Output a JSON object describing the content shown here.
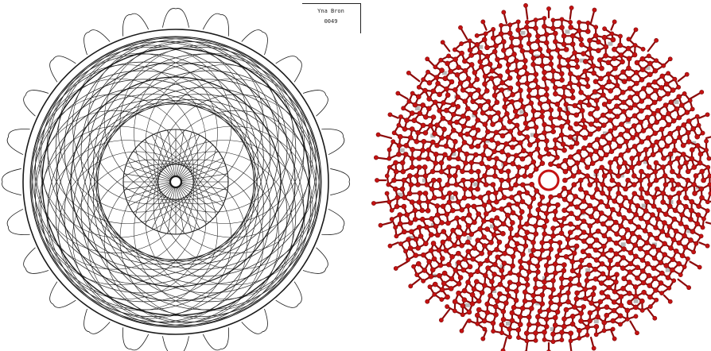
{
  "left_figure": {
    "label_name": "Yna Bron",
    "label_code": "0049",
    "stroke_color": "#1a1a1a",
    "lobe_count": 24
  },
  "right_figure": {
    "atom_color": "#c41212",
    "bond_color": "#8c0a0a",
    "shadow_color": "#9a9a9a",
    "fold_symmetry": 12
  }
}
